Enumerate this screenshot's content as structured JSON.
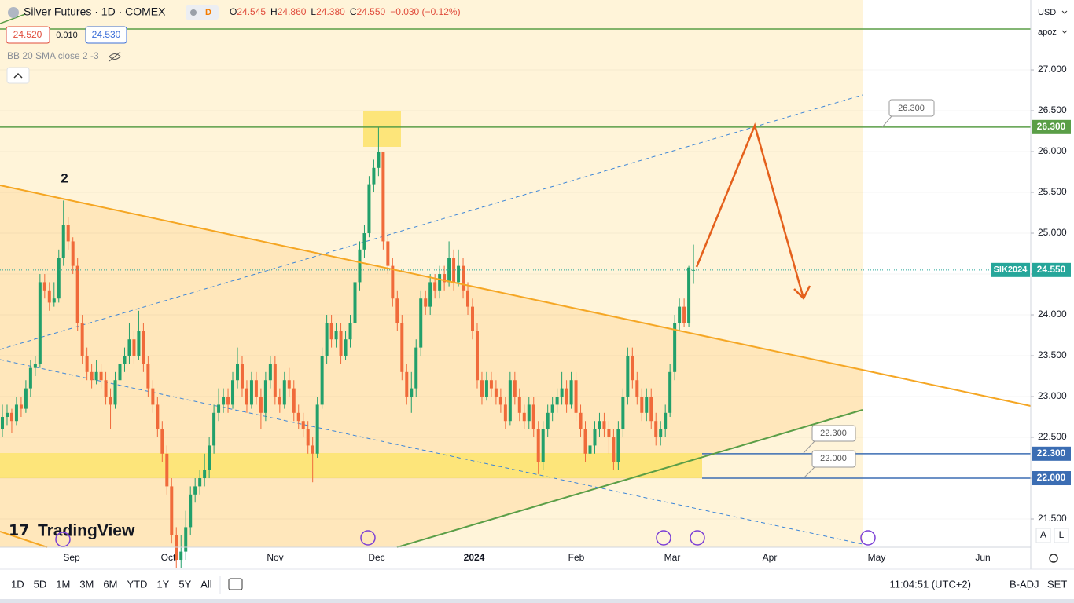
{
  "header": {
    "symbol": "Silver Futures · 1D · COMEX",
    "badge": "D",
    "o_key": "O",
    "o": "24.545",
    "h_key": "H",
    "h": "24.860",
    "l_key": "L",
    "l": "24.380",
    "c_key": "C",
    "c": "24.550",
    "change": "−0.030 (−0.12%)",
    "bid": "24.520",
    "spread": "0.010",
    "ask": "24.530",
    "indicator": "BB 20 SMA close 2 -3"
  },
  "wave_label": "2",
  "logo": "TradingView",
  "currency": "USD",
  "scale_mode": "apoz",
  "annotations": [
    "26.300",
    "22.300",
    "22.000"
  ],
  "timeframes": [
    "1D",
    "5D",
    "1M",
    "3M",
    "6M",
    "YTD",
    "1Y",
    "5Y",
    "All"
  ],
  "clock": "11:04:51 (UTC+2)",
  "adj": "B-ADJ",
  "session": "SET",
  "scale_a": "A",
  "scale_l": "L",
  "chart_data": {
    "type": "candlestick",
    "up_color": "#22a06b",
    "down_color": "#f06a3a",
    "ylim": [
      21.154,
      27.856
    ],
    "yticks": [
      {
        "value": 21.5,
        "label": "21.500"
      },
      {
        "value": 22,
        "label": "22.000"
      },
      {
        "value": 22.5,
        "label": "22.500"
      },
      {
        "value": 23,
        "label": "23.000"
      },
      {
        "value": 23.5,
        "label": "23.500"
      },
      {
        "value": 24,
        "label": "24.000"
      },
      {
        "value": 24.5,
        "label": "24.500"
      },
      {
        "value": 25,
        "label": "25.000"
      },
      {
        "value": 25.5,
        "label": "25.500"
      },
      {
        "value": 26,
        "label": "26.000"
      },
      {
        "value": 26.5,
        "label": "26.500"
      },
      {
        "value": 27,
        "label": "27.000"
      }
    ],
    "x_labels": [
      "Sep",
      "Oct",
      "Nov",
      "Dec",
      "2024",
      "Feb",
      "Mar",
      "Apr",
      "May",
      "Jun"
    ],
    "price_tags": [
      {
        "value": 26.3,
        "label": "26.300",
        "color": "#5a9e47"
      },
      {
        "value": 22.3,
        "label": "22.300",
        "color": "#3b6db3"
      },
      {
        "value": 22,
        "label": "22.000",
        "color": "#3b6db3"
      },
      {
        "value": 24.55,
        "label": "24.550",
        "name": "SIK2024",
        "color": "#26a69a"
      }
    ],
    "ohlc": [
      [
        22.6,
        22.9,
        22.5,
        22.75
      ],
      [
        22.75,
        22.9,
        22.65,
        22.8
      ],
      [
        22.8,
        22.85,
        22.55,
        22.7
      ],
      [
        22.7,
        23.0,
        22.65,
        22.9
      ],
      [
        22.9,
        23.0,
        22.75,
        22.85
      ],
      [
        22.85,
        23.2,
        22.8,
        23.1
      ],
      [
        23.1,
        23.45,
        23.0,
        23.35
      ],
      [
        23.35,
        23.5,
        23.25,
        23.4
      ],
      [
        23.4,
        24.5,
        23.35,
        24.4
      ],
      [
        24.4,
        24.5,
        24.2,
        24.3
      ],
      [
        24.3,
        24.4,
        24.05,
        24.15
      ],
      [
        24.15,
        24.4,
        24.1,
        24.2
      ],
      [
        24.2,
        24.8,
        24.15,
        24.7
      ],
      [
        24.7,
        25.4,
        24.6,
        25.1
      ],
      [
        25.1,
        25.2,
        24.8,
        24.9
      ],
      [
        24.9,
        24.95,
        24.5,
        24.6
      ],
      [
        24.6,
        24.7,
        23.8,
        23.9
      ],
      [
        23.9,
        24.0,
        23.4,
        23.5
      ],
      [
        23.5,
        23.6,
        23.2,
        23.3
      ],
      [
        23.3,
        23.4,
        23.1,
        23.2
      ],
      [
        23.2,
        23.45,
        23.15,
        23.3
      ],
      [
        23.3,
        23.4,
        23.1,
        23.2
      ],
      [
        23.2,
        23.3,
        22.9,
        23.0
      ],
      [
        23.0,
        23.1,
        22.6,
        22.9
      ],
      [
        22.9,
        23.3,
        22.85,
        23.2
      ],
      [
        23.2,
        23.5,
        23.1,
        23.4
      ],
      [
        23.4,
        23.6,
        23.3,
        23.5
      ],
      [
        23.5,
        23.9,
        23.4,
        23.7
      ],
      [
        23.7,
        23.8,
        23.4,
        23.5
      ],
      [
        23.5,
        24.05,
        23.45,
        23.8
      ],
      [
        23.8,
        23.9,
        23.3,
        23.4
      ],
      [
        23.4,
        23.5,
        23.0,
        23.1
      ],
      [
        23.1,
        23.2,
        22.8,
        22.9
      ],
      [
        22.9,
        23.0,
        22.5,
        22.6
      ],
      [
        22.6,
        22.7,
        22.2,
        22.3
      ],
      [
        22.3,
        22.4,
        21.8,
        21.9
      ],
      [
        21.9,
        22.0,
        21.2,
        21.3
      ],
      [
        21.3,
        21.4,
        20.9,
        21.0
      ],
      [
        21.0,
        21.3,
        20.9,
        21.1
      ],
      [
        21.1,
        21.6,
        21.0,
        21.4
      ],
      [
        21.4,
        21.9,
        21.3,
        21.8
      ],
      [
        21.8,
        22.0,
        21.7,
        21.9
      ],
      [
        21.9,
        22.1,
        21.8,
        22.0
      ],
      [
        22.0,
        22.3,
        21.9,
        22.1
      ],
      [
        22.1,
        22.5,
        22.0,
        22.4
      ],
      [
        22.4,
        22.9,
        22.3,
        22.8
      ],
      [
        22.8,
        23.1,
        22.7,
        22.9
      ],
      [
        22.9,
        23.1,
        22.8,
        23.0
      ],
      [
        23.0,
        23.1,
        22.8,
        22.9
      ],
      [
        22.9,
        23.3,
        22.85,
        23.2
      ],
      [
        23.2,
        23.6,
        23.1,
        23.4
      ],
      [
        23.4,
        23.5,
        23.0,
        23.1
      ],
      [
        23.1,
        23.2,
        22.8,
        22.9
      ],
      [
        22.9,
        23.3,
        22.85,
        23.2
      ],
      [
        23.2,
        23.3,
        22.9,
        23.0
      ],
      [
        23.0,
        23.1,
        22.6,
        22.8
      ],
      [
        22.8,
        23.3,
        22.7,
        23.2
      ],
      [
        23.2,
        23.5,
        23.1,
        23.4
      ],
      [
        23.4,
        23.5,
        22.9,
        23.0
      ],
      [
        23.0,
        23.1,
        22.8,
        22.9
      ],
      [
        22.9,
        23.3,
        22.85,
        23.2
      ],
      [
        23.2,
        23.35,
        23.0,
        23.1
      ],
      [
        23.1,
        23.2,
        22.7,
        22.8
      ],
      [
        22.8,
        22.9,
        22.6,
        22.7
      ],
      [
        22.7,
        22.8,
        22.5,
        22.6
      ],
      [
        22.6,
        22.7,
        22.3,
        22.4
      ],
      [
        22.4,
        22.5,
        21.95,
        22.3
      ],
      [
        22.3,
        23.0,
        22.25,
        22.9
      ],
      [
        22.9,
        23.6,
        22.85,
        23.5
      ],
      [
        23.5,
        24.0,
        23.4,
        23.9
      ],
      [
        23.9,
        24.0,
        23.6,
        23.7
      ],
      [
        23.7,
        23.9,
        23.6,
        23.8
      ],
      [
        23.8,
        23.9,
        23.4,
        23.5
      ],
      [
        23.5,
        23.8,
        23.45,
        23.7
      ],
      [
        23.7,
        24.0,
        23.6,
        23.9
      ],
      [
        23.9,
        24.5,
        23.8,
        24.4
      ],
      [
        24.4,
        24.9,
        24.3,
        24.8
      ],
      [
        24.8,
        25.1,
        24.7,
        25.0
      ],
      [
        25.0,
        25.7,
        24.95,
        25.6
      ],
      [
        25.6,
        25.9,
        25.5,
        25.8
      ],
      [
        25.8,
        26.3,
        25.7,
        26.0
      ],
      [
        26.0,
        26.0,
        24.8,
        24.9
      ],
      [
        24.9,
        25.0,
        24.5,
        24.6
      ],
      [
        24.6,
        24.7,
        24.1,
        24.2
      ],
      [
        24.2,
        24.3,
        23.8,
        23.9
      ],
      [
        23.9,
        24.0,
        23.2,
        23.3
      ],
      [
        23.3,
        23.4,
        22.9,
        23.0
      ],
      [
        23.0,
        23.3,
        22.8,
        23.1
      ],
      [
        23.1,
        23.7,
        23.0,
        23.6
      ],
      [
        23.6,
        24.3,
        23.5,
        24.2
      ],
      [
        24.2,
        24.3,
        24.0,
        24.1
      ],
      [
        24.1,
        24.5,
        24.0,
        24.4
      ],
      [
        24.4,
        24.5,
        24.2,
        24.3
      ],
      [
        24.3,
        24.6,
        24.2,
        24.5
      ],
      [
        24.5,
        24.6,
        24.3,
        24.4
      ],
      [
        24.4,
        24.9,
        24.35,
        24.7
      ],
      [
        24.7,
        24.8,
        24.3,
        24.4
      ],
      [
        24.4,
        24.8,
        24.35,
        24.6
      ],
      [
        24.6,
        24.7,
        24.2,
        24.3
      ],
      [
        24.3,
        24.4,
        24.0,
        24.1
      ],
      [
        24.1,
        24.2,
        23.7,
        23.8
      ],
      [
        23.8,
        23.9,
        23.1,
        23.2
      ],
      [
        23.2,
        23.3,
        22.9,
        23.0
      ],
      [
        23.0,
        23.3,
        22.95,
        23.2
      ],
      [
        23.2,
        23.3,
        23.0,
        23.1
      ],
      [
        23.1,
        23.2,
        22.9,
        23.0
      ],
      [
        23.0,
        23.1,
        22.8,
        22.9
      ],
      [
        22.9,
        23.0,
        22.6,
        22.7
      ],
      [
        22.7,
        23.3,
        22.65,
        23.2
      ],
      [
        23.2,
        23.3,
        22.9,
        23.0
      ],
      [
        23.0,
        23.1,
        22.7,
        22.8
      ],
      [
        22.8,
        22.9,
        22.6,
        22.7
      ],
      [
        22.7,
        23.0,
        22.6,
        22.9
      ],
      [
        22.9,
        23.0,
        22.5,
        22.6
      ],
      [
        22.6,
        22.7,
        22.05,
        22.2
      ],
      [
        22.2,
        22.7,
        22.1,
        22.6
      ],
      [
        22.6,
        22.9,
        22.5,
        22.8
      ],
      [
        22.8,
        23.0,
        22.7,
        22.9
      ],
      [
        22.9,
        23.1,
        22.8,
        23.0
      ],
      [
        23.0,
        23.3,
        22.9,
        23.1
      ],
      [
        23.1,
        23.2,
        22.8,
        22.9
      ],
      [
        22.9,
        23.3,
        22.85,
        23.2
      ],
      [
        23.2,
        23.3,
        22.7,
        22.8
      ],
      [
        22.8,
        22.9,
        22.5,
        22.6
      ],
      [
        22.6,
        22.7,
        22.2,
        22.3
      ],
      [
        22.3,
        22.5,
        22.2,
        22.4
      ],
      [
        22.4,
        22.7,
        22.3,
        22.6
      ],
      [
        22.6,
        22.8,
        22.5,
        22.7
      ],
      [
        22.7,
        22.8,
        22.5,
        22.6
      ],
      [
        22.6,
        22.7,
        22.3,
        22.5
      ],
      [
        22.5,
        22.6,
        22.1,
        22.2
      ],
      [
        22.2,
        22.7,
        22.1,
        22.6
      ],
      [
        22.6,
        23.1,
        22.5,
        23.0
      ],
      [
        23.0,
        23.6,
        22.9,
        23.5
      ],
      [
        23.5,
        23.6,
        23.1,
        23.2
      ],
      [
        23.2,
        23.3,
        22.9,
        23.0
      ],
      [
        23.0,
        23.1,
        22.7,
        22.8
      ],
      [
        22.8,
        23.1,
        22.7,
        23.0
      ],
      [
        23.0,
        23.1,
        22.6,
        22.7
      ],
      [
        22.7,
        22.8,
        22.4,
        22.5
      ],
      [
        22.5,
        22.7,
        22.4,
        22.6
      ],
      [
        22.6,
        22.9,
        22.5,
        22.8
      ],
      [
        22.8,
        23.4,
        22.75,
        23.3
      ],
      [
        23.3,
        24.0,
        23.2,
        23.9
      ],
      [
        23.9,
        24.2,
        23.8,
        24.1
      ],
      [
        24.1,
        24.2,
        23.85,
        23.9
      ],
      [
        23.9,
        24.6,
        23.85,
        24.58
      ],
      [
        24.545,
        24.86,
        24.38,
        24.55
      ]
    ]
  }
}
